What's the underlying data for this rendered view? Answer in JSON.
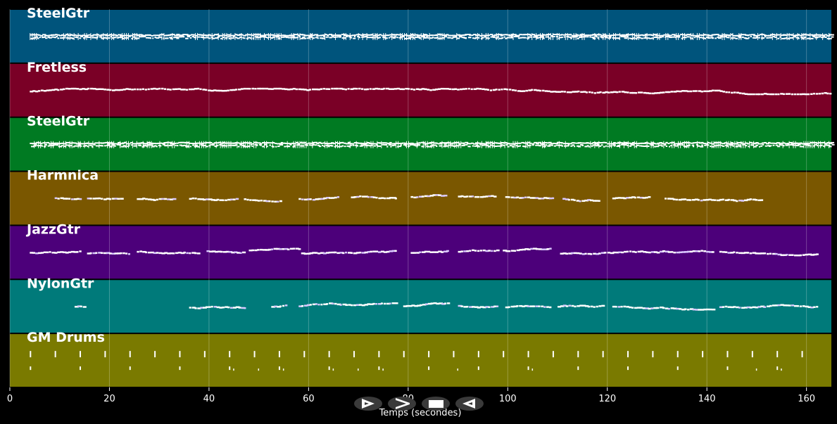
{
  "colors": {
    "background": "#000000",
    "grid": "#ffffff",
    "note": "#ffffff",
    "note_alt": "#d9c8ff"
  },
  "chart_data": {
    "type": "piano-roll",
    "xlabel": "Temps (secondes)",
    "xlim": [
      0,
      165
    ],
    "xticks": [
      0,
      20,
      40,
      60,
      80,
      100,
      120,
      140,
      160
    ],
    "grid": true,
    "tracks": [
      {
        "name": "SteelGtr",
        "color": "#00547c",
        "pattern": "dense",
        "start": 4,
        "end": 165
      },
      {
        "name": "Fretless",
        "color": "#7a0026",
        "pattern": "bass",
        "start": 4,
        "end": 165
      },
      {
        "name": "SteelGtr",
        "color": "#007a22",
        "pattern": "dense",
        "start": 4,
        "end": 165
      },
      {
        "name": "Harmnica",
        "color": "#7a5700",
        "pattern": "phrases",
        "start": 9,
        "end": 151,
        "phrases": [
          [
            9,
            14
          ],
          [
            15.5,
            22.5
          ],
          [
            25.5,
            33
          ],
          [
            36,
            45.5
          ],
          [
            47,
            54.5
          ],
          [
            58,
            66
          ],
          [
            68.5,
            77.5
          ],
          [
            80.5,
            87.5
          ],
          [
            90,
            97.5
          ],
          [
            99.5,
            109
          ],
          [
            111,
            118.5
          ],
          [
            121,
            128.5
          ],
          [
            131.5,
            151
          ]
        ]
      },
      {
        "name": "JazzGtr",
        "color": "#4c007a",
        "pattern": "phrases",
        "start": 4,
        "end": 162,
        "phrases": [
          [
            4,
            14
          ],
          [
            15.5,
            24
          ],
          [
            25.5,
            38
          ],
          [
            39.5,
            47
          ],
          [
            48,
            58
          ],
          [
            58.5,
            69
          ],
          [
            69,
            77.5
          ],
          [
            80.5,
            88
          ],
          [
            90,
            98
          ],
          [
            99,
            108.5
          ],
          [
            110.5,
            119.5
          ],
          [
            120,
            130
          ],
          [
            130.5,
            141.5
          ],
          [
            142.5,
            151.5
          ],
          [
            152,
            162
          ]
        ]
      },
      {
        "name": "NylonGtr",
        "color": "#007a7a",
        "pattern": "phrases",
        "start": 13,
        "end": 162,
        "phrases": [
          [
            13,
            15
          ],
          [
            36,
            47
          ],
          [
            52.5,
            55.5
          ],
          [
            58,
            68.5
          ],
          [
            69,
            77.5
          ],
          [
            79,
            88
          ],
          [
            90,
            98
          ],
          [
            99.5,
            108.5
          ],
          [
            110,
            119
          ],
          [
            121,
            130
          ],
          [
            130.5,
            141.5
          ],
          [
            142.5,
            151.5
          ],
          [
            152,
            162
          ]
        ]
      },
      {
        "name": "GM Drums",
        "color": "#7a7a00",
        "pattern": "drums",
        "start": 4,
        "end": 163
      }
    ]
  },
  "controls": [
    {
      "name": "play-button",
      "icon": "play-icon"
    },
    {
      "name": "forward-button",
      "icon": "forward-icon"
    },
    {
      "name": "stop-button",
      "icon": "stop-icon"
    },
    {
      "name": "rewind-button",
      "icon": "rewind-icon"
    }
  ]
}
